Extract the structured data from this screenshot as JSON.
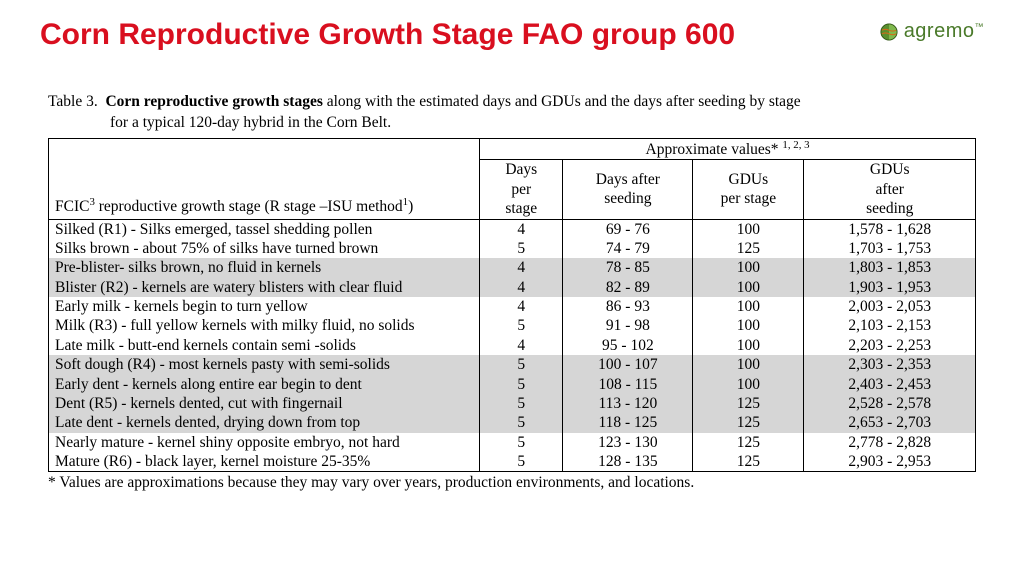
{
  "header": {
    "title": "Corn Reproductive Growth Stage FAO group 600",
    "title_color": "#d90f1f",
    "brand_name": "agremo",
    "brand_color": "#4a7a2a"
  },
  "table": {
    "caption_prefix": "Table 3.",
    "caption_bold": "Corn reproductive growth stages",
    "caption_rest": " along with the estimated days and GDUs and the days after seeding by stage",
    "caption_line2": "for a typical 120-day hybrid in the Corn Belt.",
    "spanning_header": "Approximate values*",
    "spanning_sup": "1, 2, 3",
    "col_stage_label_pre": "FCIC",
    "col_stage_sup1": "3",
    "col_stage_label_mid": " reproductive growth stage (R stage –ISU method",
    "col_stage_sup2": "1",
    "col_stage_label_post": ")",
    "col_days_line1": "Days",
    "col_days_line2": "per",
    "col_days_line3": "stage",
    "col_das_line1": "Days after",
    "col_das_line2": "seeding",
    "col_gdup_line1": "GDUs",
    "col_gdup_line2": "per stage",
    "col_gdua_line1": "GDUs",
    "col_gdua_line2": "after",
    "col_gdua_line3": "seeding",
    "rows": [
      {
        "stage": "Silked (R1) - Silks emerged, tassel shedding pollen",
        "days": "4",
        "das": "69 - 76",
        "gdup": "100",
        "gdua": "1,578 - 1,628",
        "shade": false
      },
      {
        "stage": "Silks brown - about 75% of silks have turned brown",
        "days": "5",
        "das": "74 - 79",
        "gdup": "125",
        "gdua": "1,703 - 1,753",
        "shade": false
      },
      {
        "stage": "Pre-blister- silks brown, no fluid in kernels",
        "days": "4",
        "das": "78 - 85",
        "gdup": "100",
        "gdua": "1,803 - 1,853",
        "shade": true
      },
      {
        "stage": "Blister (R2) - kernels are watery blisters with clear fluid",
        "days": "4",
        "das": "82 - 89",
        "gdup": "100",
        "gdua": "1,903 - 1,953",
        "shade": true
      },
      {
        "stage": "Early milk - kernels begin to turn yellow",
        "days": "4",
        "das": "86 - 93",
        "gdup": "100",
        "gdua": "2,003 - 2,053",
        "shade": false
      },
      {
        "stage": "Milk (R3) - full yellow kernels with milky fluid, no solids",
        "days": "5",
        "das": "91 - 98",
        "gdup": "100",
        "gdua": "2,103 - 2,153",
        "shade": false
      },
      {
        "stage": "Late milk - butt-end kernels contain semi -solids",
        "days": "4",
        "das": "95 - 102",
        "gdup": "100",
        "gdua": "2,203 - 2,253",
        "shade": false
      },
      {
        "stage": "Soft dough (R4) - most kernels pasty with semi-solids",
        "days": "5",
        "das": "100 - 107",
        "gdup": "100",
        "gdua": "2,303 - 2,353",
        "shade": true
      },
      {
        "stage": "Early dent - kernels along entire ear begin to dent",
        "days": "5",
        "das": "108 - 115",
        "gdup": "100",
        "gdua": "2,403 - 2,453",
        "shade": true
      },
      {
        "stage": "Dent (R5) - kernels dented, cut with fingernail",
        "days": "5",
        "das": "113 - 120",
        "gdup": "125",
        "gdua": "2,528 - 2,578",
        "shade": true
      },
      {
        "stage": "Late dent - kernels dented, drying down from top",
        "days": "5",
        "das": "118 - 125",
        "gdup": "125",
        "gdua": "2,653 - 2,703",
        "shade": true
      },
      {
        "stage": "Nearly mature - kernel shiny opposite embryo, not hard",
        "days": "5",
        "das": "123 - 130",
        "gdup": "125",
        "gdua": "2,778 - 2,828",
        "shade": false
      },
      {
        "stage": "Mature (R6) - black layer, kernel moisture 25-35%",
        "days": "5",
        "das": "128 - 135",
        "gdup": "125",
        "gdua": "2,903 - 2,953",
        "shade": false
      }
    ],
    "footnote": "* Values are approximations because they may vary over years, production environments, and locations.",
    "shade_color": "#d6d6d6"
  }
}
